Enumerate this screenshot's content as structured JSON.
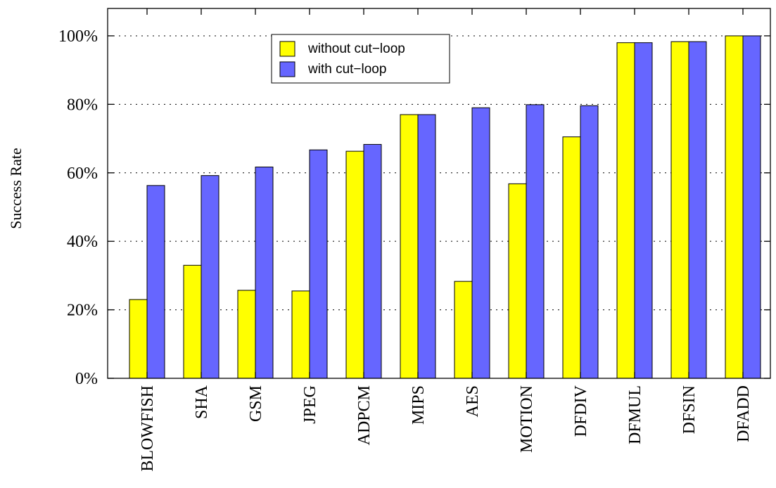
{
  "chart_data": {
    "type": "bar",
    "ylabel": "Success Rate",
    "xlabel": "",
    "ylim": [
      0,
      100
    ],
    "yticks": [
      0,
      20,
      40,
      60,
      80,
      100
    ],
    "ytick_suffix": "%",
    "grid": "horizontal-dotted",
    "legend_position": "top-center",
    "categories": [
      "BLOWFISH",
      "SHA",
      "GSM",
      "JPEG",
      "ADPCM",
      "MIPS",
      "AES",
      "MOTION",
      "DFDIV",
      "DFMUL",
      "DFSIN",
      "DFADD"
    ],
    "series": [
      {
        "name": "without cut−loop",
        "color": "#ffff00",
        "values": [
          23,
          33,
          25.7,
          25.5,
          66.3,
          77,
          28.3,
          56.8,
          70.5,
          98,
          98.3,
          100
        ]
      },
      {
        "name": "with cut−loop",
        "color": "#6666ff",
        "values": [
          56.3,
          59.2,
          61.7,
          66.7,
          68.3,
          77,
          79,
          79.9,
          79.6,
          98,
          98.3,
          100
        ]
      }
    ]
  }
}
